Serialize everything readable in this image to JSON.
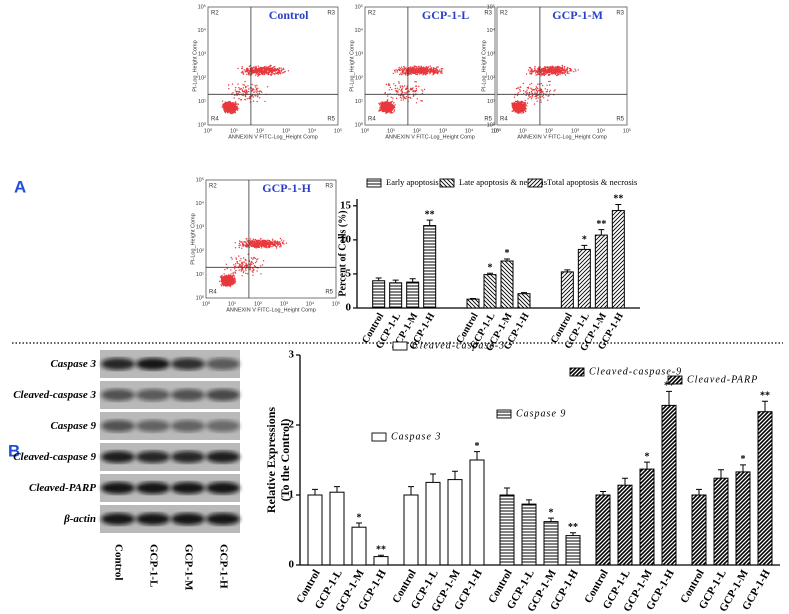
{
  "panel_labels": [
    "A",
    "B"
  ],
  "flow_plots": {
    "x_label": "ANNEXIN V FITC-Log_Height Comp",
    "y_label": "PI-Log_Height Comp",
    "ticks": [
      "10⁰",
      "10¹",
      "10²",
      "10³",
      "10⁴",
      "10⁵"
    ],
    "quadrants": [
      "R2",
      "R3",
      "R4",
      "R5"
    ],
    "plots": [
      {
        "title": "Control"
      },
      {
        "title": "GCP-1-L"
      },
      {
        "title": "GCP-1-M"
      },
      {
        "title": "GCP-1-H"
      }
    ]
  },
  "blot": {
    "rows": [
      "Caspase 3",
      "Cleaved-caspase 3",
      "Caspase 9",
      "Cleaved-caspase 9",
      "Cleaved-PARP",
      "β-actin"
    ],
    "columns": [
      "Control",
      "GCP-1-L",
      "GCP-1-M",
      "GCP-1-H"
    ]
  },
  "chart_data": [
    {
      "type": "bar",
      "ylabel": [
        "Percent of Cells (%)"
      ],
      "categories": [
        "Control",
        "GCP-1-L",
        "GCP-1-M",
        "GCP-1-H"
      ],
      "ylim": [
        0,
        16
      ],
      "yticks": [
        0,
        5,
        10,
        15
      ],
      "series": [
        {
          "name": "Early apoptosis",
          "pattern": "horizontal",
          "color": "#000000",
          "values": [
            4.0,
            3.7,
            3.8,
            12.1
          ],
          "errors": [
            0.4,
            0.4,
            0.5,
            0.8
          ],
          "significance": [
            null,
            null,
            null,
            "**"
          ]
        },
        {
          "name": "Late apoptosis & necrosis",
          "pattern": "backslash",
          "color": "#000000",
          "values": [
            1.3,
            4.9,
            6.9,
            2.1
          ],
          "errors": [
            0.1,
            0.2,
            0.3,
            0.15
          ],
          "significance": [
            null,
            "*",
            "*",
            null
          ]
        },
        {
          "name": "Total apoptosis & necrosis",
          "pattern": "slash",
          "color": "#000000",
          "values": [
            5.3,
            8.6,
            10.7,
            14.3
          ],
          "errors": [
            0.3,
            0.6,
            0.8,
            0.9
          ],
          "significance": [
            null,
            "*",
            "**",
            "**"
          ]
        }
      ]
    },
    {
      "type": "bar",
      "ylabel": [
        "Relative Expressions",
        "(To the Control)"
      ],
      "categories": [
        "Control",
        "GCP-1-L",
        "GCP-1-M",
        "GCP-1-H"
      ],
      "ylim": [
        0,
        3
      ],
      "yticks": [
        0,
        1,
        2,
        3
      ],
      "series": [
        {
          "name": "Caspase 3",
          "pattern": "open",
          "color": "#000000",
          "values": [
            1.0,
            1.04,
            0.54,
            0.12
          ],
          "errors": [
            0.08,
            0.08,
            0.06,
            0.02
          ],
          "significance": [
            null,
            null,
            "*",
            "**"
          ]
        },
        {
          "name": "Cleaved-caspase-3",
          "pattern": "open",
          "color": "#000000",
          "values": [
            1.0,
            1.18,
            1.22,
            1.5
          ],
          "errors": [
            0.12,
            0.12,
            0.12,
            0.12
          ],
          "significance": [
            null,
            null,
            null,
            "*"
          ]
        },
        {
          "name": "Caspase 9",
          "pattern": "horizontal",
          "color": "#000000",
          "values": [
            1.0,
            0.87,
            0.62,
            0.42
          ],
          "errors": [
            0.1,
            0.06,
            0.05,
            0.04
          ],
          "significance": [
            null,
            null,
            "*",
            "**"
          ]
        },
        {
          "name": "Cleaved-caspase-9",
          "pattern": "slashdense",
          "color": "#000000",
          "values": [
            1.0,
            1.14,
            1.37,
            2.28
          ],
          "errors": [
            0.05,
            0.1,
            0.1,
            0.2
          ],
          "significance": [
            null,
            null,
            "*",
            "**"
          ]
        },
        {
          "name": "Cleaved-PARP",
          "pattern": "slashdense",
          "color": "#000000",
          "values": [
            1.0,
            1.24,
            1.33,
            2.19
          ],
          "errors": [
            0.08,
            0.12,
            0.1,
            0.15
          ],
          "significance": [
            null,
            null,
            "*",
            "**"
          ]
        }
      ]
    }
  ]
}
